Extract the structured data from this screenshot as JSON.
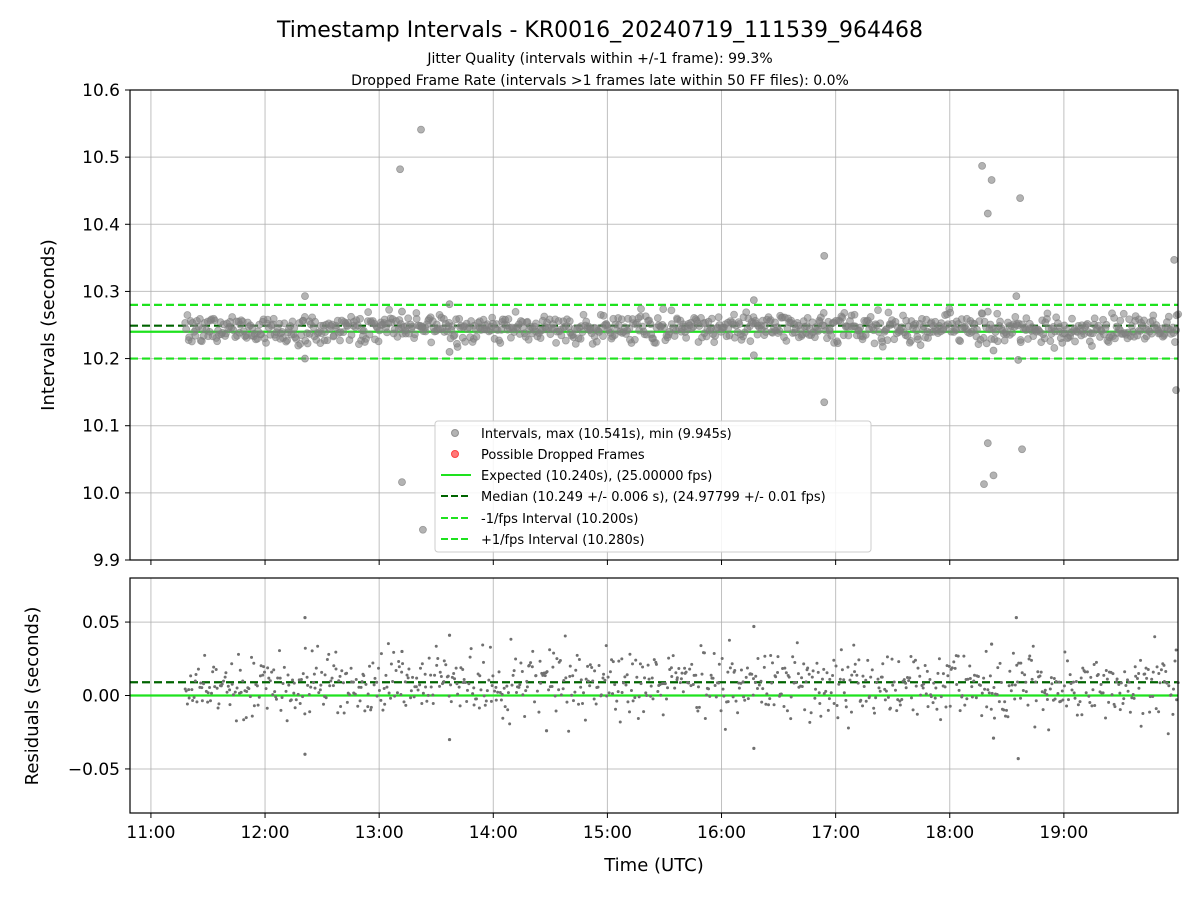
{
  "chart_data": [
    {
      "type": "scatter",
      "title": "Timestamp Intervals - KR0016_20240719_111539_964468",
      "subtitle_1": "Jitter Quality (intervals within +/-1 frame): 99.3%",
      "subtitle_2": "Dropped Frame Rate (intervals >1 frames late within 50 FF files): 0.0%",
      "xlabel": "",
      "ylabel": "Intervals (seconds)",
      "xlim": [
        "10:49",
        "20:00"
      ],
      "ylim": [
        9.9,
        10.6
      ],
      "yticks": [
        9.9,
        10.0,
        10.1,
        10.2,
        10.3,
        10.4,
        10.5,
        10.6
      ],
      "ytick_labels": [
        "9.9",
        "10.0",
        "10.1",
        "10.2",
        "10.3",
        "10.4",
        "10.5",
        "10.6"
      ],
      "grid": true,
      "legend_position": "lower-center",
      "series": [
        {
          "name": "Intervals, max (10.541s), min (9.945s)",
          "marker": "circle",
          "color": "#808080",
          "x_range": [
            "11:18",
            "20:00"
          ],
          "typical_range": [
            10.22,
            10.27
          ],
          "outliers": [
            {
              "x": "12:21",
              "y": 10.293
            },
            {
              "x": "12:21",
              "y": 10.2
            },
            {
              "x": "13:11",
              "y": 10.482
            },
            {
              "x": "13:12",
              "y": 10.016
            },
            {
              "x": "13:12",
              "y": 10.27
            },
            {
              "x": "13:22",
              "y": 10.541
            },
            {
              "x": "13:23",
              "y": 9.945
            },
            {
              "x": "13:37",
              "y": 10.281
            },
            {
              "x": "13:37",
              "y": 10.21
            },
            {
              "x": "16:17",
              "y": 10.287
            },
            {
              "x": "16:17",
              "y": 10.205
            },
            {
              "x": "16:54",
              "y": 10.353
            },
            {
              "x": "16:54",
              "y": 10.135
            },
            {
              "x": "18:17",
              "y": 10.487
            },
            {
              "x": "18:18",
              "y": 10.013
            },
            {
              "x": "18:20",
              "y": 10.416
            },
            {
              "x": "18:20",
              "y": 10.074
            },
            {
              "x": "18:22",
              "y": 10.466
            },
            {
              "x": "18:23",
              "y": 10.026
            },
            {
              "x": "18:23",
              "y": 10.212
            },
            {
              "x": "18:35",
              "y": 10.293
            },
            {
              "x": "18:36",
              "y": 10.198
            },
            {
              "x": "18:37",
              "y": 10.439
            },
            {
              "x": "18:38",
              "y": 10.065
            },
            {
              "x": "19:58",
              "y": 10.347
            },
            {
              "x": "19:59",
              "y": 10.153
            }
          ]
        },
        {
          "name": "Possible Dropped Frames",
          "marker": "circle",
          "color": "#ff4040",
          "points": []
        },
        {
          "name": "Expected (10.240s), (25.00000 fps)",
          "type": "hline",
          "style": "solid",
          "color": "#1ee21e",
          "value": 10.24
        },
        {
          "name": "Median (10.249 +/- 0.006 s), (24.97799 +/- 0.01 fps)",
          "type": "hline",
          "style": "dashed",
          "color": "#006400",
          "value": 10.249
        },
        {
          "name": "-1/fps Interval (10.200s)",
          "type": "hline",
          "style": "dashed",
          "color": "#1ee21e",
          "value": 10.2
        },
        {
          "name": "+1/fps Interval (10.280s)",
          "type": "hline",
          "style": "dashed",
          "color": "#1ee21e",
          "value": 10.28
        }
      ]
    },
    {
      "type": "scatter",
      "title": "",
      "xlabel": "Time (UTC)",
      "ylabel": "Residuals (seconds)",
      "xlim": [
        "10:49",
        "20:00"
      ],
      "ylim": [
        -0.08,
        0.08
      ],
      "yticks": [
        -0.05,
        0.0,
        0.05
      ],
      "ytick_labels": [
        "−0.05",
        "0.00",
        "0.05"
      ],
      "xticks": [
        "11:00",
        "12:00",
        "13:00",
        "14:00",
        "15:00",
        "16:00",
        "17:00",
        "18:00",
        "19:00"
      ],
      "xtick_labels": [
        "11:00",
        "12:00",
        "13:00",
        "14:00",
        "15:00",
        "16:00",
        "17:00",
        "18:00",
        "19:00"
      ],
      "grid": true,
      "series": [
        {
          "name": "",
          "marker": "dot",
          "color": "#707070",
          "x_range": [
            "11:18",
            "20:00"
          ],
          "typical_range": [
            -0.015,
            0.03
          ],
          "outliers": [
            {
              "x": "12:21",
              "y": 0.053
            },
            {
              "x": "12:21",
              "y": -0.04
            },
            {
              "x": "13:12",
              "y": 0.03
            },
            {
              "x": "13:37",
              "y": 0.041
            },
            {
              "x": "13:37",
              "y": -0.03
            },
            {
              "x": "14:28",
              "y": -0.024
            },
            {
              "x": "16:17",
              "y": 0.047
            },
            {
              "x": "16:17",
              "y": -0.036
            },
            {
              "x": "18:22",
              "y": 0.035
            },
            {
              "x": "18:23",
              "y": -0.029
            },
            {
              "x": "18:35",
              "y": 0.053
            },
            {
              "x": "18:36",
              "y": -0.043
            }
          ]
        },
        {
          "name": "",
          "type": "hline",
          "style": "solid",
          "color": "#1ee21e",
          "value": 0.0
        },
        {
          "name": "",
          "type": "hline",
          "style": "dashed",
          "color": "#006400",
          "value": 0.009
        }
      ]
    }
  ]
}
